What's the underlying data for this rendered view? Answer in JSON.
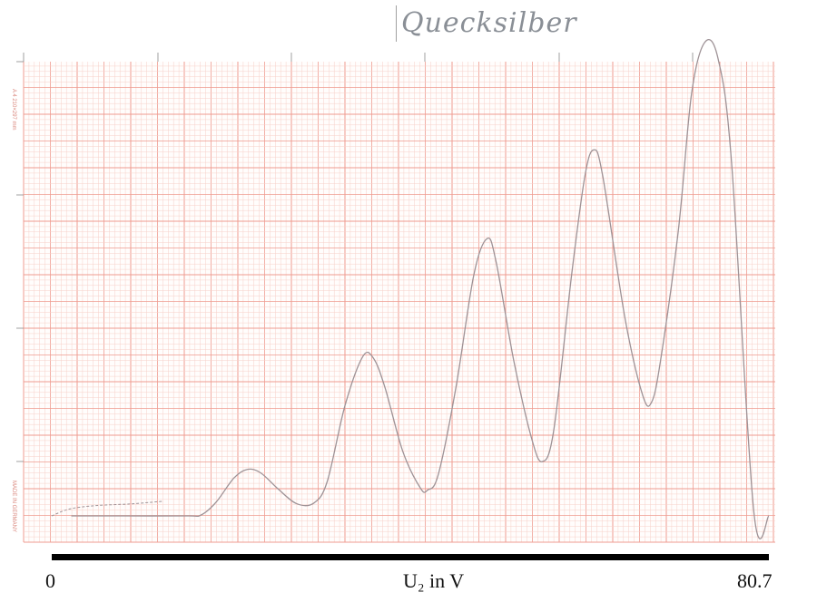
{
  "title": "Quecksilber",
  "paper_margin": {
    "format_label": "A 4  210×297 mm",
    "made_in_label": "MADE IN GERMANY"
  },
  "colors": {
    "grid_major": "#ef9b90",
    "grid_minor": "#f7d0c9",
    "curve": "#9e9296",
    "axis_bar": "#000000"
  },
  "chart_data": {
    "type": "line",
    "title": "Quecksilber",
    "xlabel": "U₂ in V",
    "ylabel": "",
    "xlim": [
      0,
      80.7
    ],
    "x_tick_labels": [
      "0",
      "80.7"
    ],
    "grid": true,
    "series": [
      {
        "points": [
          [
            2.2,
            0.0
          ],
          [
            8.0,
            0.0
          ],
          [
            15.3,
            0.0
          ],
          [
            16.8,
            0.1
          ],
          [
            18.5,
            1.6
          ],
          [
            20.5,
            4.4
          ],
          [
            22.0,
            5.4
          ],
          [
            23.5,
            5.0
          ],
          [
            25.5,
            3.1
          ],
          [
            27.6,
            1.4
          ],
          [
            29.5,
            1.5
          ],
          [
            31.0,
            4.0
          ],
          [
            33.0,
            12.8
          ],
          [
            35.0,
            18.5
          ],
          [
            36.2,
            18.3
          ],
          [
            37.5,
            14.9
          ],
          [
            39.5,
            7.5
          ],
          [
            41.5,
            3.2
          ],
          [
            42.3,
            3.0
          ],
          [
            43.5,
            4.8
          ],
          [
            45.5,
            15.0
          ],
          [
            47.5,
            28.0
          ],
          [
            49.0,
            32.2
          ],
          [
            50.0,
            29.5
          ],
          [
            52.0,
            18.0
          ],
          [
            54.0,
            9.0
          ],
          [
            55.2,
            6.3
          ],
          [
            56.5,
            10.0
          ],
          [
            58.5,
            28.0
          ],
          [
            60.0,
            39.5
          ],
          [
            61.0,
            42.5
          ],
          [
            62.0,
            39.5
          ],
          [
            64.5,
            23.0
          ],
          [
            66.5,
            14.0
          ],
          [
            67.5,
            13.2
          ],
          [
            68.5,
            18.0
          ],
          [
            70.5,
            33.0
          ],
          [
            72.0,
            49.0
          ],
          [
            73.5,
            55.0
          ],
          [
            75.0,
            53.0
          ],
          [
            76.5,
            41.0
          ],
          [
            79.0,
            0.5
          ],
          [
            80.7,
            0.0
          ]
        ]
      },
      {
        "points": [
          [
            0.0,
            0.0
          ],
          [
            2.0,
            0.8
          ],
          [
            5.0,
            1.2
          ],
          [
            9.0,
            1.4
          ],
          [
            12.5,
            1.7
          ]
        ]
      }
    ]
  }
}
